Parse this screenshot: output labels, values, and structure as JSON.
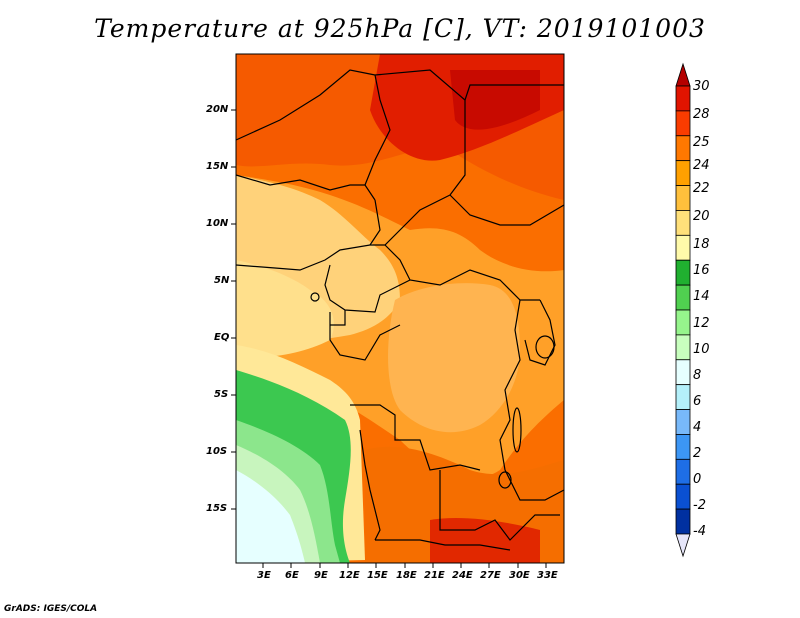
{
  "title": "Temperature at 925hPa [C], VT: 2019101003",
  "credit": "GrADS: IGES/COLA",
  "lat_labels": [
    "20N",
    "15N",
    "10N",
    "5N",
    "EQ",
    "5S",
    "10S",
    "15S"
  ],
  "lon_labels": [
    "3E",
    "6E",
    "9E",
    "12E",
    "15E",
    "18E",
    "21E",
    "24E",
    "27E",
    "30E",
    "33E"
  ],
  "colorbar": {
    "labels": [
      "30",
      "28",
      "25",
      "24",
      "22",
      "20",
      "18",
      "16",
      "14",
      "12",
      "10",
      "8",
      "6",
      "4",
      "2",
      "0",
      "-2",
      "-4"
    ],
    "colors": [
      "#b40000",
      "#e11400",
      "#fa3c00",
      "#ff7800",
      "#ffa000",
      "#ffc03c",
      "#ffe07a",
      "#fffaaa",
      "#20b030",
      "#50d050",
      "#96f58c",
      "#c8ffbe",
      "#e6ffff",
      "#b4f0fa",
      "#78b9fa",
      "#3c96f5",
      "#1e6ee6",
      "#0a50d2",
      "#0030a0",
      "#000064"
    ]
  }
}
